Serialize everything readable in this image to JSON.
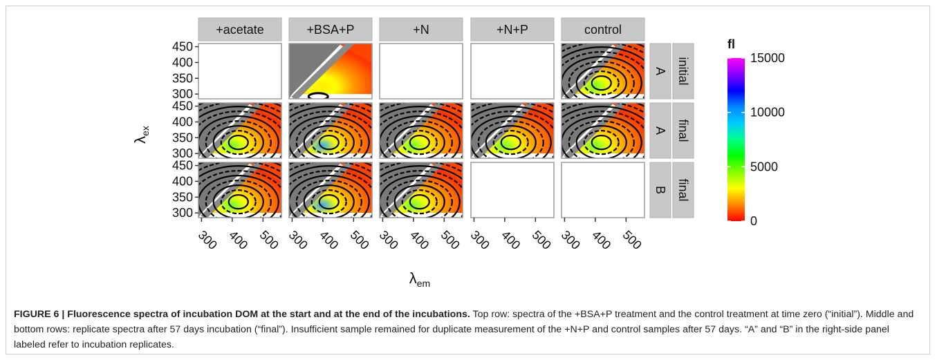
{
  "figure": {
    "columns": [
      "+acetate",
      "+BSA+P",
      "+N",
      "+N+P",
      "control"
    ],
    "rows": [
      {
        "replicate": "A",
        "time": "initial"
      },
      {
        "replicate": "A",
        "time": "final"
      },
      {
        "replicate": "B",
        "time": "final"
      }
    ],
    "y_label": "λ",
    "y_label_sub": "ex",
    "x_label": "λ",
    "x_label_sub": "em",
    "y_ticks": [
      "450",
      "400",
      "350",
      "300"
    ],
    "x_ticks": [
      "300",
      "400",
      "500"
    ],
    "legend": {
      "title": "fl",
      "ticks": [
        "15000",
        "10000",
        "5000",
        "0"
      ],
      "colors": [
        "#ff00ff",
        "#8800ff",
        "#0000ff",
        "#0088ff",
        "#00ccff",
        "#00ff88",
        "#00ff00",
        "#88ff00",
        "#ffff00",
        "#ff8800",
        "#ff0000"
      ]
    },
    "panel_data": {
      "0-0": false,
      "0-1": true,
      "0-2": false,
      "0-3": false,
      "0-4": true,
      "1-0": true,
      "1-1": true,
      "1-2": true,
      "1-3": true,
      "1-4": true,
      "2-0": true,
      "2-1": true,
      "2-2": true,
      "2-3": false,
      "2-4": false
    }
  },
  "caption": {
    "label": "FIGURE 6 | Fluorescence spectra of incubation DOM at the start and at the end of the incubations.",
    "text": " Top row: spectra of the +BSA+P treatment and the control treatment at time zero (“initial”). Middle and bottom rows: replicate spectra after 57 days incubation (“final”). Insufficient sample remained for duplicate measurement of the +N+P and control samples after 57 days. “A” and “B” in the right-side panel labeled refer to incubation replicates."
  },
  "chart_data": {
    "type": "heatmap",
    "title": "",
    "xlabel": "λem",
    "ylabel": "λex",
    "xlim": [
      290,
      560
    ],
    "ylim": [
      285,
      460
    ],
    "x_ticks": [
      300,
      400,
      500
    ],
    "y_ticks": [
      300,
      350,
      400,
      450
    ],
    "facet_columns": [
      "+acetate",
      "+BSA+P",
      "+N",
      "+N+P",
      "control"
    ],
    "facet_rows": [
      "A initial",
      "A final",
      "B final"
    ],
    "color_scale": {
      "name": "fl",
      "min": 0,
      "max": 15000,
      "breaks": [
        0,
        5000,
        10000,
        15000
      ]
    }
  }
}
